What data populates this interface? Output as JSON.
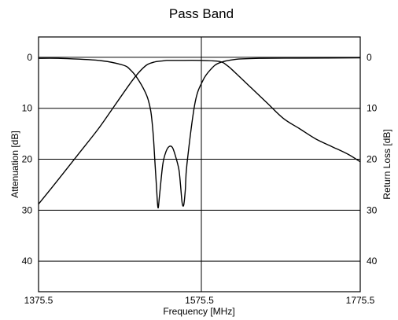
{
  "chart_data": {
    "type": "line",
    "title": "Pass Band",
    "xlabel": "Frequency [MHz]",
    "ylabel_left": "Attenuation [dB]",
    "ylabel_right": "Return Loss [dB]",
    "xlim": [
      1375.5,
      1775.5
    ],
    "ylim": [
      46,
      -4
    ],
    "x_ticks": [
      "1375.5",
      "1575.5",
      "1775.5"
    ],
    "y_ticks": [
      "0",
      "10",
      "20",
      "30",
      "40"
    ],
    "grid": "horizontal",
    "series": [
      {
        "x": [
          1375.5,
          1400,
          1425,
          1450,
          1470,
          1490,
          1500,
          1510,
          1520,
          1530,
          1535,
          1540,
          1550,
          1575.5,
          1600,
          1610,
          1620,
          1640,
          1660,
          1680,
          1700,
          1720,
          1740,
          1760,
          1775.5
        ],
        "y": [
          28.8,
          24,
          19,
          14,
          9.5,
          5,
          3,
          1.5,
          0.9,
          0.7,
          0.6,
          0.6,
          0.6,
          0.6,
          0.8,
          1.6,
          3,
          6,
          9,
          12,
          14,
          16,
          17.5,
          19,
          20.5
        ]
      },
      {
        "x": [
          1375.5,
          1400,
          1450,
          1480,
          1490,
          1500,
          1510,
          1515,
          1518,
          1520,
          1522,
          1524,
          1526,
          1530,
          1534,
          1538,
          1542,
          1546,
          1550,
          1552,
          1554,
          1556,
          1558,
          1560,
          1570,
          1580,
          1590,
          1600,
          1620,
          1650,
          1700,
          1775.5
        ],
        "y": [
          0.2,
          0.2,
          0.6,
          1.5,
          2.5,
          4.5,
          7.5,
          10.5,
          15,
          20,
          25,
          29.5,
          27,
          21,
          18.5,
          17.5,
          17.7,
          19.5,
          22,
          25,
          28.5,
          29,
          26,
          21,
          9,
          4.5,
          2.3,
          1.1,
          0.4,
          0.2,
          0.15,
          0.1
        ]
      }
    ]
  }
}
